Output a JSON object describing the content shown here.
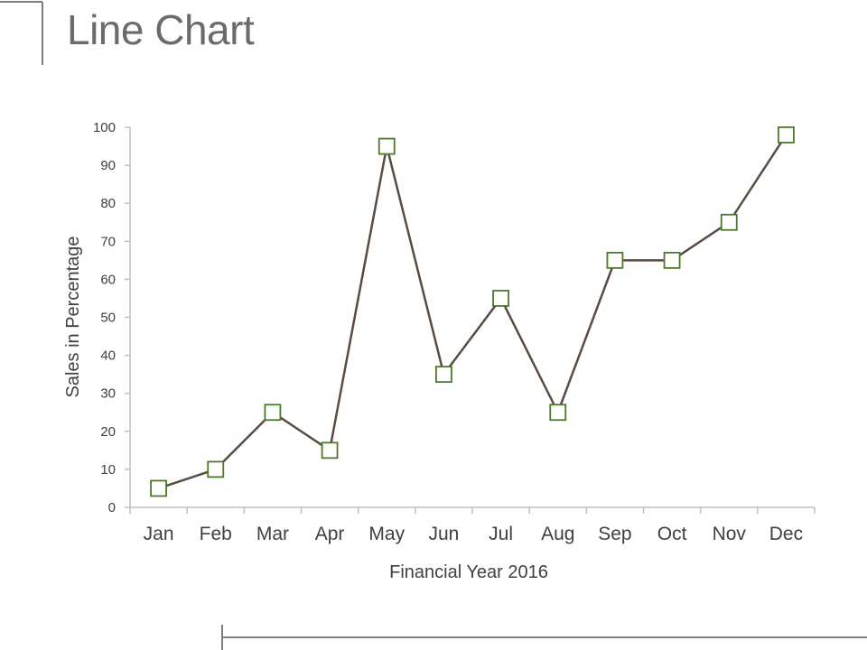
{
  "page": {
    "title": "Line Chart"
  },
  "colors": {
    "line": "#5a4b42",
    "marker_stroke": "#4a7a2a",
    "marker_fill": "#ffffff",
    "axis": "#bfbfbf",
    "decor": "#7f7f7f",
    "text": "#404040"
  },
  "chart_data": {
    "type": "line",
    "title": "",
    "xlabel": "Financial Year 2016",
    "ylabel": "Sales in Percentage",
    "categories": [
      "Jan",
      "Feb",
      "Mar",
      "Apr",
      "May",
      "Jun",
      "Jul",
      "Aug",
      "Sep",
      "Oct",
      "Nov",
      "Dec"
    ],
    "series": [
      {
        "values": [
          5,
          10,
          25,
          15,
          95,
          35,
          55,
          25,
          65,
          65,
          75,
          98
        ]
      }
    ],
    "ylim": [
      0,
      100
    ],
    "yticks": [
      0,
      10,
      20,
      30,
      40,
      50,
      60,
      70,
      80,
      90,
      100
    ],
    "grid": false,
    "legend": "none",
    "marker": "square"
  }
}
